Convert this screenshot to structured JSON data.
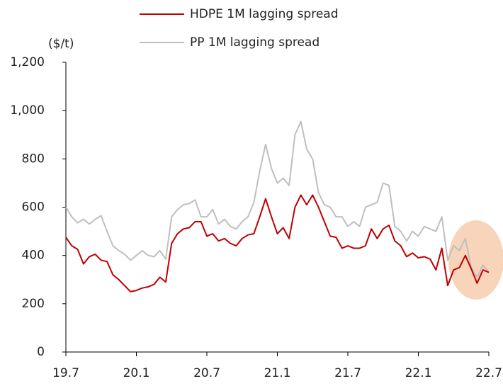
{
  "chart_data": {
    "type": "line",
    "y_label": "($/t)",
    "categories": [
      "19.7",
      null,
      null,
      null,
      null,
      null,
      null,
      null,
      null,
      null,
      null,
      null,
      "20.1",
      null,
      null,
      null,
      null,
      null,
      null,
      null,
      null,
      null,
      null,
      null,
      "20.7",
      null,
      null,
      null,
      null,
      null,
      null,
      null,
      null,
      null,
      null,
      null,
      "21.1",
      null,
      null,
      null,
      null,
      null,
      null,
      null,
      null,
      null,
      null,
      null,
      "21.7",
      null,
      null,
      null,
      null,
      null,
      null,
      null,
      null,
      null,
      null,
      null,
      "22.1",
      null,
      null,
      null,
      null,
      null,
      null,
      null,
      null,
      null,
      null,
      null,
      "22.7"
    ],
    "series": [
      {
        "name": "HDPE 1M lagging spread",
        "color": "#c00000",
        "values": [
          475,
          440,
          425,
          365,
          395,
          405,
          380,
          375,
          320,
          300,
          275,
          250,
          255,
          265,
          270,
          280,
          310,
          290,
          450,
          490,
          510,
          515,
          540,
          540,
          480,
          490,
          460,
          470,
          450,
          440,
          470,
          485,
          490,
          560,
          635,
          560,
          490,
          515,
          470,
          600,
          650,
          610,
          650,
          600,
          540,
          480,
          475,
          430,
          440,
          430,
          430,
          440,
          510,
          470,
          510,
          525,
          460,
          440,
          395,
          410,
          390,
          395,
          385,
          340,
          430,
          275,
          340,
          350,
          400,
          345,
          285,
          340,
          330
        ]
      },
      {
        "name": "PP 1M lagging spread",
        "color": "#bfbfbf",
        "values": [
          600,
          560,
          535,
          550,
          530,
          550,
          565,
          500,
          440,
          420,
          405,
          380,
          400,
          420,
          400,
          395,
          420,
          385,
          560,
          590,
          610,
          615,
          630,
          560,
          560,
          590,
          530,
          550,
          520,
          510,
          540,
          560,
          620,
          750,
          860,
          760,
          700,
          720,
          690,
          900,
          955,
          840,
          800,
          660,
          610,
          600,
          560,
          560,
          520,
          540,
          520,
          600,
          610,
          620,
          700,
          690,
          520,
          500,
          460,
          500,
          480,
          520,
          510,
          500,
          560,
          380,
          440,
          420,
          470,
          350,
          310,
          360,
          330
        ]
      }
    ],
    "ylim": [
      0,
      1200
    ],
    "yticks": [
      0,
      200,
      400,
      600,
      800,
      {
        "value": 1000,
        "label": "1,000"
      },
      {
        "value": 1200,
        "label": "1,200"
      }
    ],
    "legend": "top"
  }
}
